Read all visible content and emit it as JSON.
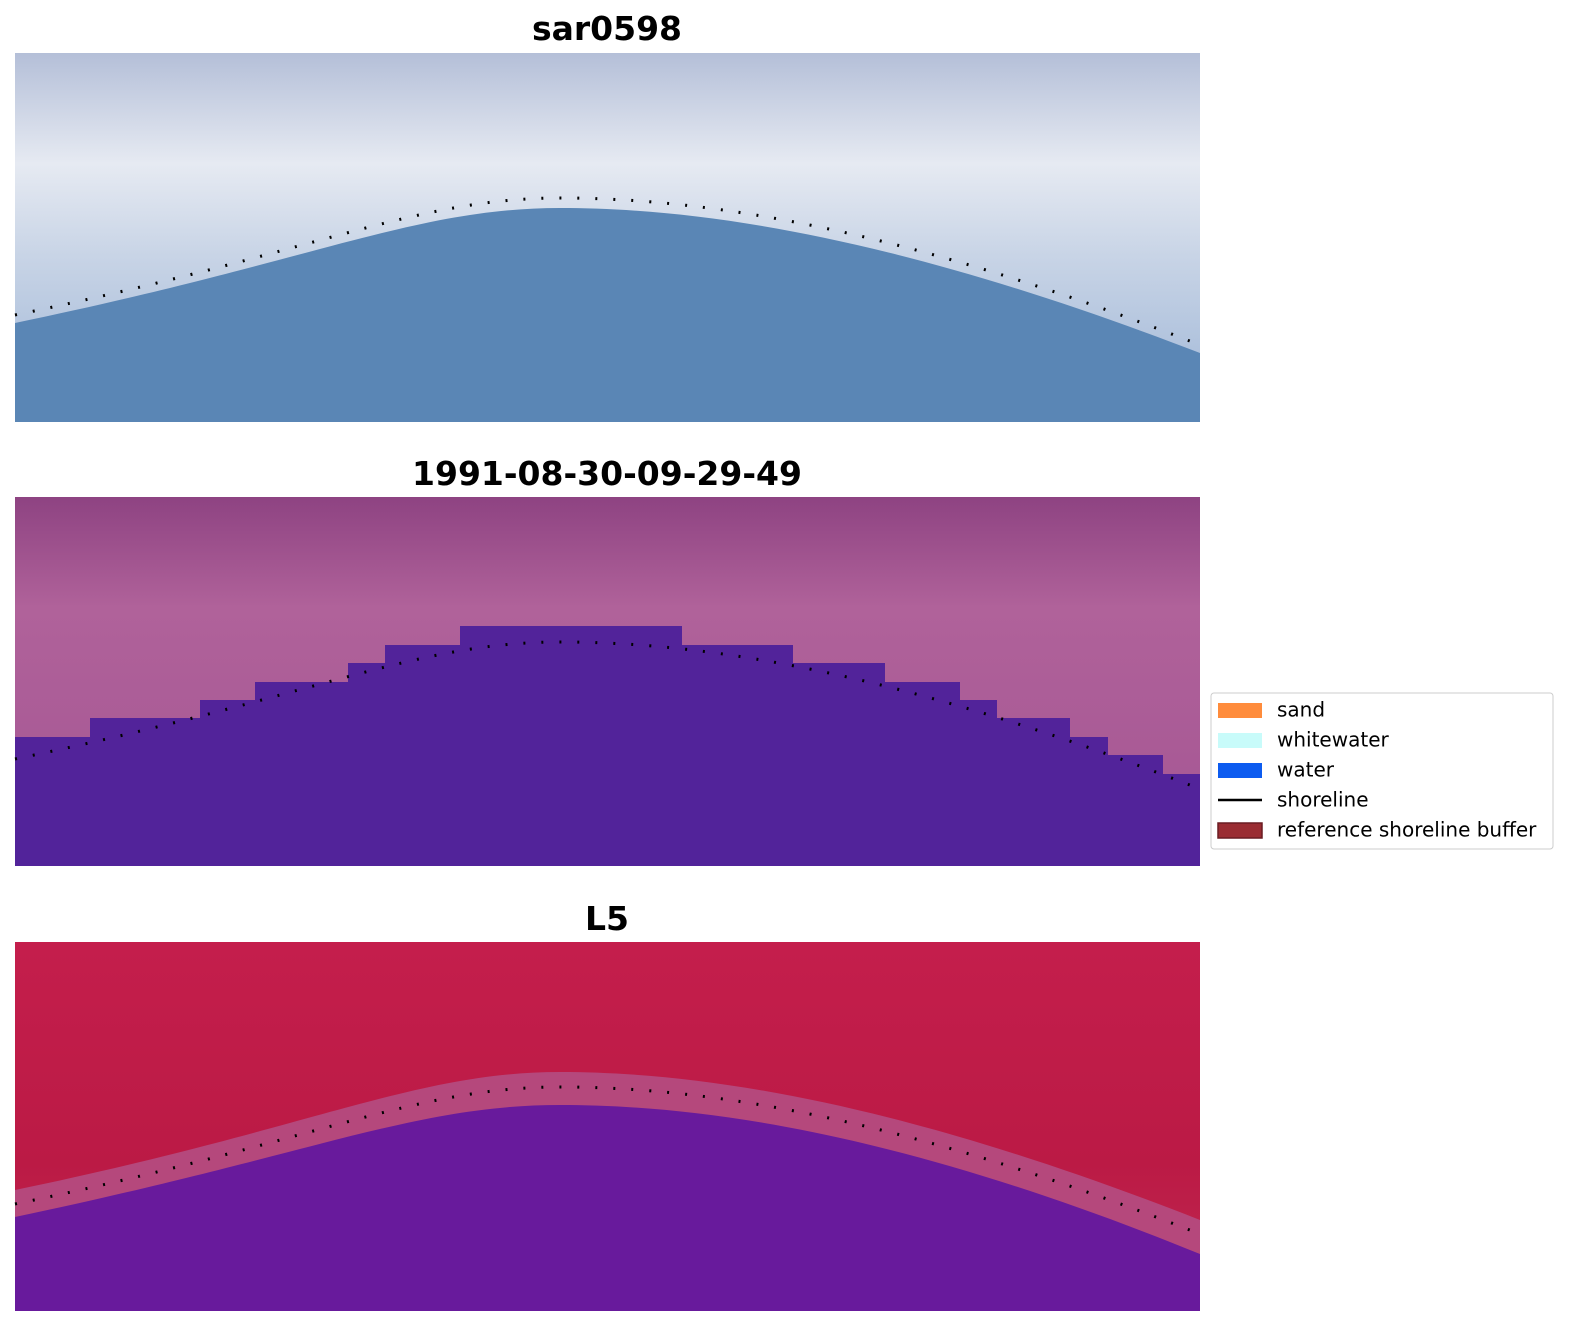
{
  "panels": [
    {
      "title": "sar0598"
    },
    {
      "title": "1991-08-30-09-29-49"
    },
    {
      "title": "L5"
    }
  ],
  "legend": [
    {
      "label": "sand",
      "color": "#ff8c3c"
    },
    {
      "label": "whitewater",
      "color": "#c8fbfa"
    },
    {
      "label": "water",
      "color": "#0d5cf0"
    },
    {
      "label": "shoreline",
      "color": "#000000"
    },
    {
      "label": "reference shoreline buffer",
      "color": "#9a2c32"
    }
  ]
}
